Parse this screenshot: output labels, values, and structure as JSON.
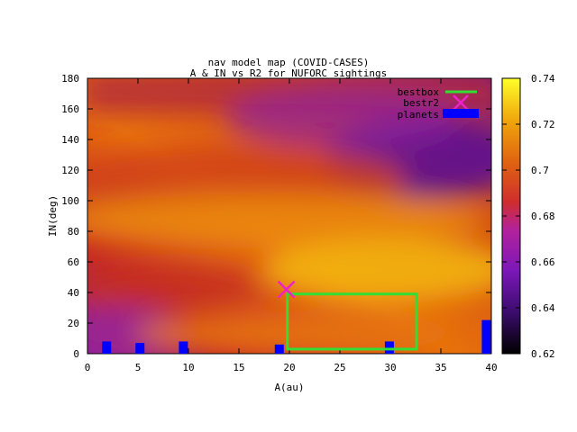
{
  "chart_data": {
    "type": "heatmap",
    "title": "nav model map (COVID-CASES)",
    "subtitle": "A & IN vs R2 for NUFORC sightings",
    "xlabel": "A(au)",
    "ylabel": "IN(deg)",
    "xlim": [
      0,
      40
    ],
    "ylim": [
      0,
      180
    ],
    "x_ticks": [
      0,
      5,
      10,
      15,
      20,
      25,
      30,
      35,
      40
    ],
    "y_ticks": [
      0,
      20,
      40,
      60,
      80,
      100,
      120,
      140,
      160,
      180
    ],
    "colorbar": {
      "range": [
        0.62,
        0.74
      ],
      "ticks": [
        "0.62",
        "0.64",
        "0.66",
        "0.68",
        "0.7",
        "0.72",
        "0.74"
      ]
    },
    "legend_position": "top-right",
    "series": [
      {
        "name": "bestbox",
        "kind": "rectangle",
        "color": "#33dd33",
        "x_range": [
          19.8,
          32.6
        ],
        "y_range": [
          3,
          39
        ]
      },
      {
        "name": "bestr2",
        "kind": "point",
        "color": "#ee22cc",
        "points": [
          {
            "x": 19.7,
            "y": 42
          }
        ]
      },
      {
        "name": "planets",
        "kind": "bar",
        "color": "#0000ff",
        "bars": [
          {
            "x": 1.9,
            "y": 8
          },
          {
            "x": 5.2,
            "y": 7
          },
          {
            "x": 9.5,
            "y": 8
          },
          {
            "x": 19.0,
            "y": 6
          },
          {
            "x": 29.9,
            "y": 8
          },
          {
            "x": 39.5,
            "y": 22
          }
        ]
      }
    ]
  }
}
